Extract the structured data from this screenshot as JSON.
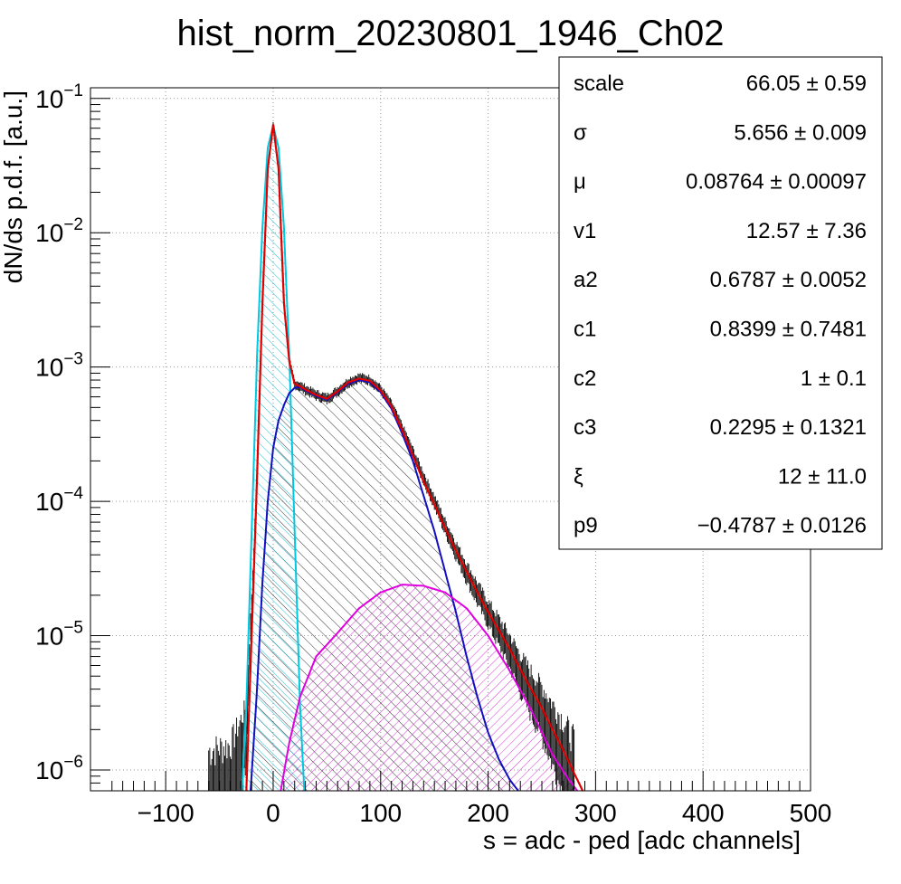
{
  "chart_data": {
    "type": "line",
    "title": "hist_norm_20230801_1946_Ch02",
    "xlabel": "s = adc - ped [adc channels]",
    "ylabel": "dN/ds p.d.f. [a.u.]",
    "xlim": [
      -170,
      500
    ],
    "ylim": [
      7e-07,
      0.12
    ],
    "yscale": "log",
    "grid": true,
    "x_ticks": [
      {
        "v": -100,
        "label": "−100"
      },
      {
        "v": 0,
        "label": "0"
      },
      {
        "v": 100,
        "label": "100"
      },
      {
        "v": 200,
        "label": "200"
      },
      {
        "v": 300,
        "label": "300"
      },
      {
        "v": 400,
        "label": "400"
      },
      {
        "v": 500,
        "label": "500"
      }
    ],
    "y_ticks": [
      {
        "v": 0.1,
        "base": "10",
        "exp": "−1"
      },
      {
        "v": 0.01,
        "base": "10",
        "exp": "−2"
      },
      {
        "v": 0.001,
        "base": "10",
        "exp": "−3"
      },
      {
        "v": 0.0001,
        "base": "10",
        "exp": "−4"
      },
      {
        "v": 1e-05,
        "base": "10",
        "exp": "−5"
      },
      {
        "v": 1e-06,
        "base": "10",
        "exp": "−6"
      }
    ],
    "series": [
      {
        "role": "histogram",
        "color": "#000000",
        "x": [
          -60,
          -40,
          -25,
          -15,
          -10,
          -5,
          0,
          5,
          10,
          15,
          20,
          25,
          30,
          40,
          50,
          60,
          70,
          80,
          90,
          100,
          110,
          120,
          130,
          140,
          150,
          160,
          170,
          180,
          190,
          200,
          210,
          220,
          230,
          240,
          250,
          260,
          270,
          280
        ],
        "y": [
          8e-07,
          9e-07,
          2e-06,
          0.00015,
          0.003,
          0.03,
          0.062,
          0.03,
          0.003,
          0.0011,
          0.00075,
          0.00072,
          0.00068,
          0.00062,
          0.00058,
          0.00066,
          0.00077,
          0.00083,
          0.0008,
          0.00068,
          0.00052,
          0.00035,
          0.00023,
          0.00015,
          0.0001,
          6.5e-05,
          4.4e-05,
          3e-05,
          2.1e-05,
          1.5e-05,
          1.1e-05,
          8e-06,
          5.5e-06,
          4e-06,
          3e-06,
          2.1e-06,
          1.5e-06,
          1e-06
        ]
      },
      {
        "role": "total-fit",
        "color": "#e00000",
        "x": [
          -25,
          -15,
          -10,
          -5,
          0,
          5,
          10,
          15,
          20,
          25,
          30,
          40,
          50,
          60,
          70,
          80,
          90,
          100,
          110,
          120,
          130,
          140,
          150,
          160,
          170,
          180,
          190,
          200,
          210,
          220,
          230,
          240,
          250,
          260,
          270,
          280,
          288
        ],
        "y": [
          7e-07,
          0.00015,
          0.003,
          0.03,
          0.064,
          0.03,
          0.003,
          0.0011,
          0.00075,
          0.00072,
          0.00068,
          0.00062,
          0.00058,
          0.00066,
          0.00077,
          0.00082,
          0.00079,
          0.00067,
          0.00051,
          0.00034,
          0.00022,
          0.00014,
          9.5e-05,
          6.3e-05,
          4.3e-05,
          3e-05,
          2.1e-05,
          1.5e-05,
          1.1e-05,
          8e-06,
          5.6e-06,
          4e-06,
          2.9e-06,
          2e-06,
          1.4e-06,
          9.5e-07,
          7e-07
        ]
      },
      {
        "role": "pedestal-component",
        "color": "#00c8e0",
        "hatch": true,
        "x": [
          -29,
          -25,
          -20,
          -15,
          -10,
          -5,
          0,
          5,
          10,
          15,
          20,
          25,
          29
        ],
        "y": [
          7e-07,
          3e-06,
          6e-05,
          0.0012,
          0.011,
          0.043,
          0.063,
          0.043,
          0.011,
          0.0012,
          6e-05,
          3e-06,
          7e-07
        ]
      },
      {
        "role": "signal-component",
        "color": "#1010c0",
        "hatch": true,
        "x": [
          -21,
          -15,
          -10,
          -5,
          0,
          5,
          10,
          15,
          20,
          25,
          30,
          40,
          50,
          60,
          70,
          80,
          90,
          100,
          110,
          120,
          130,
          140,
          150,
          160,
          170,
          180,
          190,
          200,
          210,
          220,
          228
        ],
        "y": [
          7e-07,
          4e-06,
          2.5e-05,
          0.0001,
          0.00025,
          0.0004,
          0.00052,
          0.00064,
          0.0007,
          0.00071,
          0.00067,
          0.00061,
          0.00057,
          0.00065,
          0.00075,
          0.0008,
          0.00077,
          0.00065,
          0.00049,
          0.00032,
          0.0002,
          0.00011,
          6e-05,
          3e-05,
          1.5e-05,
          7e-06,
          3.5e-06,
          1.9e-06,
          1.2e-06,
          8.5e-07,
          7e-07
        ]
      },
      {
        "role": "second-peak-component",
        "color": "#e000e0",
        "hatch": true,
        "x": [
          7,
          15,
          25,
          40,
          60,
          80,
          100,
          120,
          140,
          160,
          180,
          200,
          220,
          240,
          260,
          275,
          283
        ],
        "y": [
          7e-07,
          1.6e-06,
          3.5e-06,
          7e-06,
          1.05e-05,
          1.6e-05,
          2.1e-05,
          2.4e-05,
          2.35e-05,
          2.1e-05,
          1.6e-05,
          1e-05,
          5.5e-06,
          2.8e-06,
          1.3e-06,
          8.5e-07,
          7e-07
        ]
      }
    ],
    "stats": [
      {
        "name": "scale",
        "value": "66.05 ± 0.59"
      },
      {
        "name": "σ",
        "value": "5.656 ± 0.009"
      },
      {
        "name": "μ",
        "value": "0.08764 ± 0.00097"
      },
      {
        "name": "v1",
        "value": "12.57 ± 7.36"
      },
      {
        "name": "a2",
        "value": "0.6787 ± 0.0052"
      },
      {
        "name": "c1",
        "value": "0.8399 ± 0.7481"
      },
      {
        "name": "c2",
        "value": "1 ± 0.1"
      },
      {
        "name": "c3",
        "value": "0.2295 ± 0.1321"
      },
      {
        "name": "ξ",
        "value": "12 ± 11.0"
      },
      {
        "name": "p9",
        "value": "−0.4787 ± 0.0126"
      }
    ]
  }
}
